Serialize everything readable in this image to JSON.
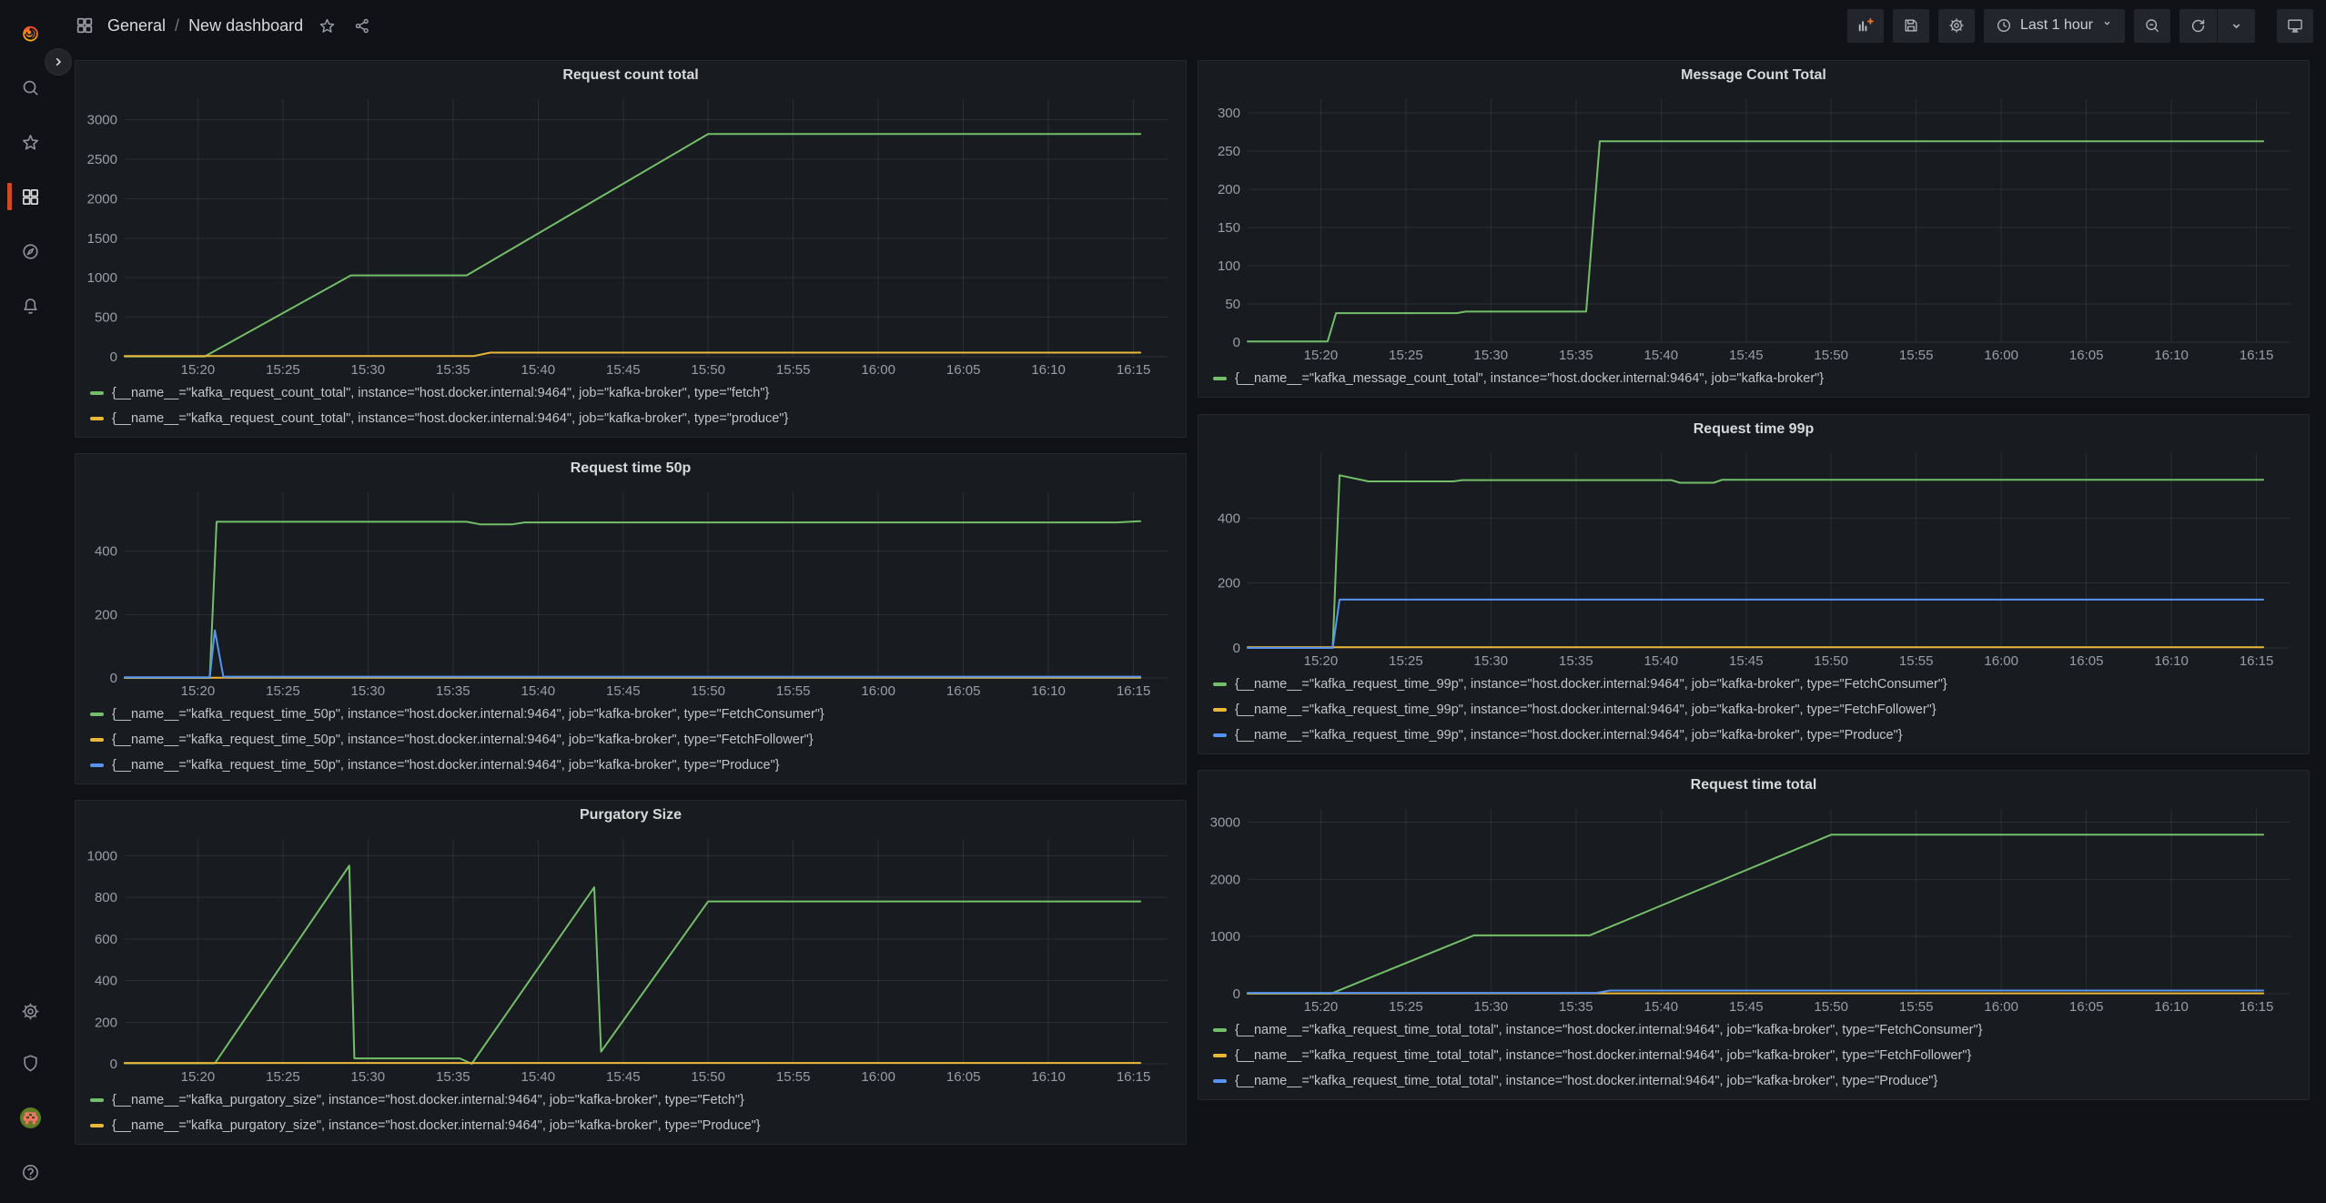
{
  "header": {
    "breadcrumb": {
      "section": "General",
      "separator": "/",
      "page": "New dashboard"
    },
    "time_range_label": "Last 1 hour",
    "toolbar_buttons": [
      "add-panel",
      "save-dashboard",
      "dashboard-settings",
      "time-range-picker",
      "zoom-out",
      "refresh",
      "refresh-interval-dropdown",
      "cycle-view-mode"
    ]
  },
  "sidebar": {
    "top_icons": [
      "grafana-logo",
      "search",
      "starred",
      "dashboards",
      "explore",
      "alerting"
    ],
    "bottom_icons": [
      "configuration",
      "server-admin",
      "user-avatar",
      "help"
    ],
    "active_item": "dashboards"
  },
  "colors": {
    "page_bg": "#111217",
    "panel_bg": "#181B1F",
    "accent_orange": "#CF4A24",
    "series_green": "#73BF69",
    "series_yellow": "#EAB839",
    "series_blue": "#5794F2"
  },
  "panels": [
    {
      "title": "Request count total",
      "chart_data": {
        "type": "line",
        "x_unit": "time_of_day_minutes",
        "xlim": [
          915.7,
          977
        ],
        "ylim": [
          0,
          3260
        ],
        "yticks": [
          0,
          500,
          1000,
          1500,
          2000,
          2500,
          3000
        ],
        "xtick_times": [
          920,
          925,
          930,
          935,
          940,
          945,
          950,
          955,
          960,
          965,
          970,
          975
        ],
        "xtick_labels": [
          "15:20",
          "15:25",
          "15:30",
          "15:35",
          "15:40",
          "15:45",
          "15:50",
          "15:55",
          "16:00",
          "16:05",
          "16:10",
          "16:15"
        ],
        "series": [
          {
            "label": "{__name__=\"kafka_request_count_total\", instance=\"host.docker.internal:9464\", job=\"kafka-broker\", type=\"fetch\"}",
            "color": "#73BF69",
            "points": [
              [
                915.7,
                2
              ],
              [
                920.4,
                2
              ],
              [
                929,
                1030
              ],
              [
                935.8,
                1030
              ],
              [
                950,
                2820
              ],
              [
                975.4,
                2820
              ]
            ]
          },
          {
            "label": "{__name__=\"kafka_request_count_total\", instance=\"host.docker.internal:9464\", job=\"kafka-broker\", type=\"produce\"}",
            "color": "#EAB839",
            "points": [
              [
                915.7,
                8
              ],
              [
                936.2,
                8
              ],
              [
                937.2,
                52
              ],
              [
                975.4,
                52
              ]
            ]
          }
        ]
      }
    },
    {
      "title": "Message Count Total",
      "chart_data": {
        "type": "line",
        "x_unit": "time_of_day_minutes",
        "xlim": [
          915.7,
          977
        ],
        "ylim": [
          0,
          318
        ],
        "yticks": [
          0,
          50,
          100,
          150,
          200,
          250,
          300
        ],
        "xtick_times": [
          920,
          925,
          930,
          935,
          940,
          945,
          950,
          955,
          960,
          965,
          970,
          975
        ],
        "xtick_labels": [
          "15:20",
          "15:25",
          "15:30",
          "15:35",
          "15:40",
          "15:45",
          "15:50",
          "15:55",
          "16:00",
          "16:05",
          "16:10",
          "16:15"
        ],
        "series": [
          {
            "label": "{__name__=\"kafka_message_count_total\", instance=\"host.docker.internal:9464\", job=\"kafka-broker\"}",
            "color": "#73BF69",
            "points": [
              [
                915.7,
                1
              ],
              [
                920.4,
                1
              ],
              [
                920.9,
                38
              ],
              [
                928,
                38
              ],
              [
                928.5,
                40
              ],
              [
                935.6,
                40
              ],
              [
                936.4,
                263
              ],
              [
                975.4,
                263
              ]
            ]
          }
        ]
      }
    },
    {
      "title": "Request time 50p",
      "chart_data": {
        "type": "line",
        "x_unit": "time_of_day_minutes",
        "xlim": [
          915.7,
          977
        ],
        "ylim": [
          0,
          585
        ],
        "yticks": [
          0,
          200,
          400
        ],
        "xtick_times": [
          920,
          925,
          930,
          935,
          940,
          945,
          950,
          955,
          960,
          965,
          970,
          975
        ],
        "xtick_labels": [
          "15:20",
          "15:25",
          "15:30",
          "15:35",
          "15:40",
          "15:45",
          "15:50",
          "15:55",
          "16:00",
          "16:05",
          "16:10",
          "16:15"
        ],
        "series": [
          {
            "label": "{__name__=\"kafka_request_time_50p\", instance=\"host.docker.internal:9464\", job=\"kafka-broker\", type=\"FetchConsumer\"}",
            "color": "#73BF69",
            "points": [
              [
                915.7,
                0
              ],
              [
                920.7,
                0
              ],
              [
                921.1,
                492
              ],
              [
                935.8,
                492
              ],
              [
                936.6,
                484
              ],
              [
                938.5,
                484
              ],
              [
                939.2,
                490
              ],
              [
                974,
                490
              ],
              [
                975.4,
                494
              ]
            ]
          },
          {
            "label": "{__name__=\"kafka_request_time_50p\", instance=\"host.docker.internal:9464\", job=\"kafka-broker\", type=\"FetchFollower\"}",
            "color": "#EAB839",
            "points": [
              [
                915.7,
                1
              ],
              [
                975.4,
                1
              ]
            ]
          },
          {
            "label": "{__name__=\"kafka_request_time_50p\", instance=\"host.docker.internal:9464\", job=\"kafka-broker\", type=\"Produce\"}",
            "color": "#5794F2",
            "points": [
              [
                915.7,
                2
              ],
              [
                920.7,
                2
              ],
              [
                921,
                150
              ],
              [
                921.5,
                4
              ],
              [
                975.4,
                4
              ]
            ]
          }
        ]
      }
    },
    {
      "title": "Request time 99p",
      "chart_data": {
        "type": "line",
        "x_unit": "time_of_day_minutes",
        "xlim": [
          915.7,
          977
        ],
        "ylim": [
          0,
          600
        ],
        "yticks": [
          0,
          200,
          400
        ],
        "xtick_times": [
          920,
          925,
          930,
          935,
          940,
          945,
          950,
          955,
          960,
          965,
          970,
          975
        ],
        "xtick_labels": [
          "15:20",
          "15:25",
          "15:30",
          "15:35",
          "15:40",
          "15:45",
          "15:50",
          "15:55",
          "16:00",
          "16:05",
          "16:10",
          "16:15"
        ],
        "series": [
          {
            "label": "{__name__=\"kafka_request_time_99p\", instance=\"host.docker.internal:9464\", job=\"kafka-broker\", type=\"FetchConsumer\"}",
            "color": "#73BF69",
            "points": [
              [
                915.7,
                0
              ],
              [
                920.7,
                0
              ],
              [
                921.1,
                532
              ],
              [
                922.8,
                513
              ],
              [
                927.8,
                513
              ],
              [
                928.3,
                517
              ],
              [
                940.6,
                517
              ],
              [
                941.1,
                509
              ],
              [
                943.1,
                509
              ],
              [
                943.6,
                518
              ],
              [
                975.4,
                518
              ]
            ]
          },
          {
            "label": "{__name__=\"kafka_request_time_99p\", instance=\"host.docker.internal:9464\", job=\"kafka-broker\", type=\"FetchFollower\"}",
            "color": "#EAB839",
            "points": [
              [
                915.7,
                2
              ],
              [
                975.4,
                2
              ]
            ]
          },
          {
            "label": "{__name__=\"kafka_request_time_99p\", instance=\"host.docker.internal:9464\", job=\"kafka-broker\", type=\"Produce\"}",
            "color": "#5794F2",
            "points": [
              [
                915.7,
                0
              ],
              [
                920.7,
                0
              ],
              [
                921.1,
                149
              ],
              [
                975.4,
                149
              ]
            ]
          }
        ]
      }
    },
    {
      "title": "Purgatory Size",
      "chart_data": {
        "type": "line",
        "x_unit": "time_of_day_minutes",
        "xlim": [
          915.7,
          977
        ],
        "ylim": [
          0,
          1080
        ],
        "yticks": [
          0,
          200,
          400,
          600,
          800,
          1000
        ],
        "xtick_times": [
          920,
          925,
          930,
          935,
          940,
          945,
          950,
          955,
          960,
          965,
          970,
          975
        ],
        "xtick_labels": [
          "15:20",
          "15:25",
          "15:30",
          "15:35",
          "15:40",
          "15:45",
          "15:50",
          "15:55",
          "16:00",
          "16:05",
          "16:10",
          "16:15"
        ],
        "series": [
          {
            "label": "{__name__=\"kafka_purgatory_size\", instance=\"host.docker.internal:9464\", job=\"kafka-broker\", type=\"Fetch\"}",
            "color": "#73BF69",
            "points": [
              [
                915.7,
                2
              ],
              [
                921,
                2
              ],
              [
                928.9,
                952
              ],
              [
                929.2,
                26
              ],
              [
                935.4,
                26
              ],
              [
                936.1,
                0
              ],
              [
                943.3,
                848
              ],
              [
                943.7,
                58
              ],
              [
                950,
                780
              ],
              [
                975.4,
                780
              ]
            ]
          },
          {
            "label": "{__name__=\"kafka_purgatory_size\", instance=\"host.docker.internal:9464\", job=\"kafka-broker\", type=\"Produce\"}",
            "color": "#EAB839",
            "points": [
              [
                915.7,
                4
              ],
              [
                975.4,
                4
              ]
            ]
          }
        ]
      }
    },
    {
      "title": "Request time total",
      "chart_data": {
        "type": "line",
        "x_unit": "time_of_day_minutes",
        "xlim": [
          915.7,
          977
        ],
        "ylim": [
          0,
          3230
        ],
        "yticks": [
          0,
          1000,
          2000,
          3000
        ],
        "xtick_times": [
          920,
          925,
          930,
          935,
          940,
          945,
          950,
          955,
          960,
          965,
          970,
          975
        ],
        "xtick_labels": [
          "15:20",
          "15:25",
          "15:30",
          "15:35",
          "15:40",
          "15:45",
          "15:50",
          "15:55",
          "16:00",
          "16:05",
          "16:10",
          "16:15"
        ],
        "series": [
          {
            "label": "{__name__=\"kafka_request_time_total_total\", instance=\"host.docker.internal:9464\", job=\"kafka-broker\", type=\"FetchConsumer\"}",
            "color": "#73BF69",
            "points": [
              [
                915.7,
                2
              ],
              [
                920.6,
                2
              ],
              [
                929,
                1020
              ],
              [
                935.8,
                1020
              ],
              [
                950,
                2780
              ],
              [
                975.4,
                2780
              ]
            ]
          },
          {
            "label": "{__name__=\"kafka_request_time_total_total\", instance=\"host.docker.internal:9464\", job=\"kafka-broker\", type=\"FetchFollower\"}",
            "color": "#EAB839",
            "points": [
              [
                915.7,
                6
              ],
              [
                975.4,
                6
              ]
            ]
          },
          {
            "label": "{__name__=\"kafka_request_time_total_total\", instance=\"host.docker.internal:9464\", job=\"kafka-broker\", type=\"Produce\"}",
            "color": "#5794F2",
            "points": [
              [
                915.7,
                14
              ],
              [
                936.2,
                14
              ],
              [
                937,
                55
              ],
              [
                975.4,
                55
              ]
            ]
          }
        ]
      }
    }
  ]
}
